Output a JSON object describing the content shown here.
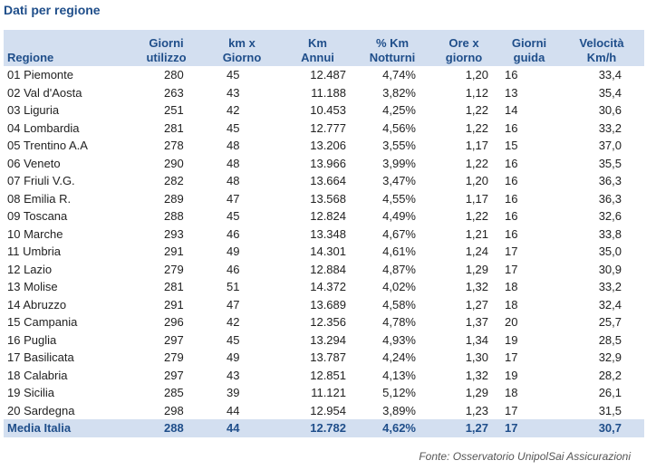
{
  "title": "Dati per regione",
  "headers": {
    "regione": "Regione",
    "giorni_utilizzo": [
      "Giorni",
      "utilizzo"
    ],
    "km_giorno": [
      "km x",
      "Giorno"
    ],
    "km_annui": [
      "Km",
      "Annui"
    ],
    "km_notturni": [
      "% Km",
      "Notturni"
    ],
    "ore_giorno": [
      "Ore x",
      "giorno"
    ],
    "giorni_guida": [
      "Giorni",
      "guida"
    ],
    "velocita": [
      "Velocità",
      "Km/h"
    ]
  },
  "rows": [
    [
      "01 Piemonte",
      "280",
      "45",
      "12.487",
      "4,74%",
      "1,20",
      "16",
      "33,4"
    ],
    [
      "02 Val d'Aosta",
      "263",
      "43",
      "11.188",
      "3,82%",
      "1,12",
      "13",
      "35,4"
    ],
    [
      "03 Liguria",
      "251",
      "42",
      "10.453",
      "4,25%",
      "1,22",
      "14",
      "30,6"
    ],
    [
      "04 Lombardia",
      "281",
      "45",
      "12.777",
      "4,56%",
      "1,22",
      "16",
      "33,2"
    ],
    [
      "05 Trentino A.A",
      "278",
      "48",
      "13.206",
      "3,55%",
      "1,17",
      "15",
      "37,0"
    ],
    [
      "06 Veneto",
      "290",
      "48",
      "13.966",
      "3,99%",
      "1,22",
      "16",
      "35,5"
    ],
    [
      "07 Friuli V.G.",
      "282",
      "48",
      "13.664",
      "3,47%",
      "1,20",
      "16",
      "36,3"
    ],
    [
      "08 Emilia R.",
      "289",
      "47",
      "13.568",
      "4,55%",
      "1,17",
      "16",
      "36,3"
    ],
    [
      "09 Toscana",
      "288",
      "45",
      "12.824",
      "4,49%",
      "1,22",
      "16",
      "32,6"
    ],
    [
      "10 Marche",
      "293",
      "46",
      "13.348",
      "4,67%",
      "1,21",
      "16",
      "33,8"
    ],
    [
      "11 Umbria",
      "291",
      "49",
      "14.301",
      "4,61%",
      "1,24",
      "17",
      "35,0"
    ],
    [
      "12 Lazio",
      "279",
      "46",
      "12.884",
      "4,87%",
      "1,29",
      "17",
      "30,9"
    ],
    [
      "13 Molise",
      "281",
      "51",
      "14.372",
      "4,02%",
      "1,32",
      "18",
      "33,2"
    ],
    [
      "14 Abruzzo",
      "291",
      "47",
      "13.689",
      "4,58%",
      "1,27",
      "18",
      "32,4"
    ],
    [
      "15 Campania",
      "296",
      "42",
      "12.356",
      "4,78%",
      "1,37",
      "20",
      "25,7"
    ],
    [
      "16 Puglia",
      "297",
      "45",
      "13.294",
      "4,93%",
      "1,34",
      "19",
      "28,5"
    ],
    [
      "17 Basilicata",
      "279",
      "49",
      "13.787",
      "4,24%",
      "1,30",
      "17",
      "32,9"
    ],
    [
      "18 Calabria",
      "297",
      "43",
      "12.851",
      "4,13%",
      "1,32",
      "19",
      "28,2"
    ],
    [
      "19 Sicilia",
      "285",
      "39",
      "11.121",
      "5,12%",
      "1,29",
      "18",
      "26,1"
    ],
    [
      "20 Sardegna",
      "298",
      "44",
      "12.954",
      "3,89%",
      "1,23",
      "17",
      "31,5"
    ]
  ],
  "total": [
    "Media Italia",
    "288",
    "44",
    "12.782",
    "4,62%",
    "1,27",
    "17",
    "30,7"
  ],
  "source": "Fonte: Osservatorio UnipolSai Assicurazioni",
  "colors": {
    "accent": "#1f4e8a",
    "header_bg": "#d3dff0"
  }
}
